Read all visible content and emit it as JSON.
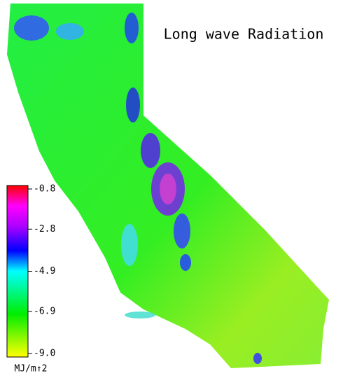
{
  "title": "Long wave Radiation",
  "colorbar": {
    "range": [
      -9.0,
      -0.8
    ],
    "ticks": [
      -0.8,
      -2.8,
      -4.9,
      -6.9,
      {
        "value": -9.0,
        "label": "-9.0"
      }
    ],
    "unit": "MJ/m↑2"
  }
}
